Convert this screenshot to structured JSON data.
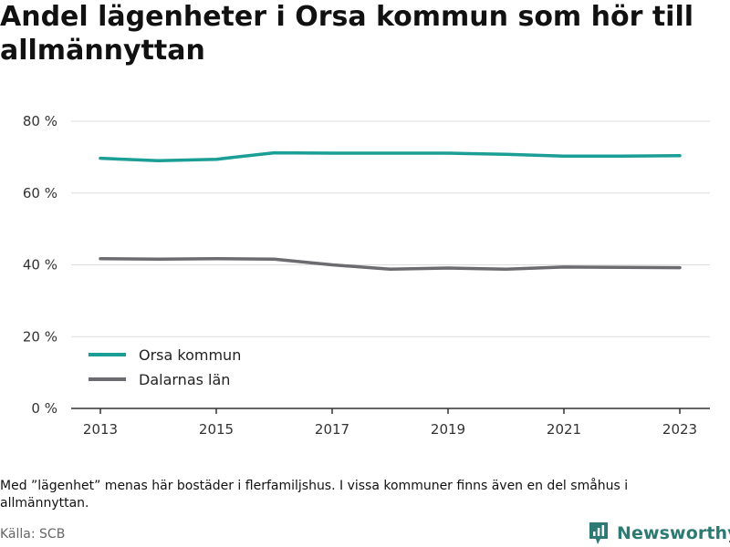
{
  "title": "Andel lägenheter i Orsa kommun som hör till allmännyttan",
  "note": "Med ”lägenhet” menas här bostäder i flerfamiljshus. I vissa kommuner finns även en del småhus i allmännyttan.",
  "source": "Källa: SCB",
  "brand": {
    "name": "Newsworthy"
  },
  "colors": {
    "orsa": "#1a9e96",
    "dalarna": "#6b6b70",
    "grid": "#dddddd",
    "axis": "#333333"
  },
  "chart_data": {
    "type": "line",
    "x": [
      2013,
      2014,
      2015,
      2016,
      2017,
      2018,
      2019,
      2020,
      2021,
      2022,
      2023
    ],
    "x_ticks": [
      2013,
      2015,
      2017,
      2019,
      2021,
      2023
    ],
    "y_ticks": [
      0,
      20,
      40,
      60,
      80
    ],
    "y_tick_labels": [
      "0 %",
      "20 %",
      "40 %",
      "60 %",
      "80 %"
    ],
    "ylim": [
      0,
      80
    ],
    "xlim": [
      2013,
      2023
    ],
    "grid": true,
    "legend_placement": "bottom-left",
    "series": [
      {
        "name": "Orsa kommun",
        "color": "#1a9e96",
        "values": [
          69.7,
          69.0,
          69.4,
          71.2,
          71.1,
          71.1,
          71.1,
          70.8,
          70.3,
          70.3,
          70.4
        ]
      },
      {
        "name": "Dalarnas län",
        "color": "#6b6b70",
        "values": [
          41.7,
          41.6,
          41.7,
          41.6,
          40.0,
          38.8,
          39.1,
          38.8,
          39.4,
          39.3,
          39.2
        ]
      }
    ]
  }
}
